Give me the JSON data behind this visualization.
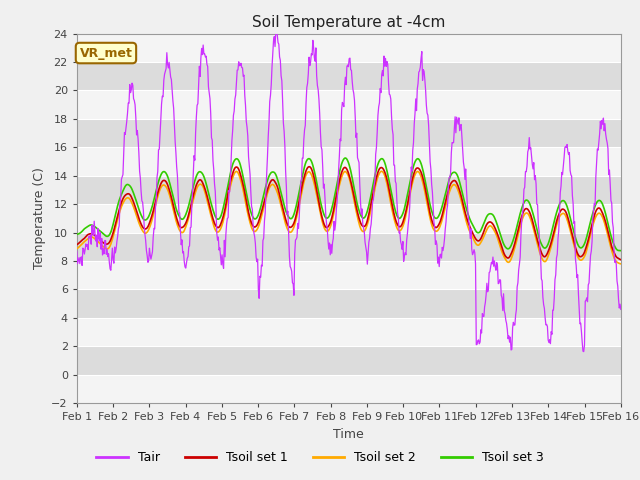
{
  "title": "Soil Temperature at -4cm",
  "xlabel": "Time",
  "ylabel": "Temperature (C)",
  "ylim": [
    -2,
    24
  ],
  "yticks": [
    -2,
    0,
    2,
    4,
    6,
    8,
    10,
    12,
    14,
    16,
    18,
    20,
    22,
    24
  ],
  "xtick_labels": [
    "Feb 1",
    "Feb 2",
    "Feb 3",
    "Feb 4",
    "Feb 5",
    "Feb 6",
    "Feb 7",
    "Feb 8",
    "Feb 9",
    "Feb 10",
    "Feb 11",
    "Feb 12",
    "Feb 13",
    "Feb 14",
    "Feb 15",
    "Feb 16"
  ],
  "colors": {
    "Tair": "#cc33ff",
    "Tsoil1": "#cc0000",
    "Tsoil2": "#ffaa00",
    "Tsoil3": "#33cc00"
  },
  "fig_bg": "#f0f0f0",
  "plot_bg": "#e8e8e8",
  "band_light": "#f4f4f4",
  "band_dark": "#dcdcdc",
  "grid_color": "#ffffff",
  "annotation_text": "VR_met",
  "annotation_bg": "#ffffcc",
  "annotation_border": "#996600",
  "legend_colors": {
    "Tair": "#cc33ff",
    "Tsoil1": "#cc0000",
    "Tsoil2": "#ffaa00",
    "Tsoil3": "#33cc00"
  }
}
